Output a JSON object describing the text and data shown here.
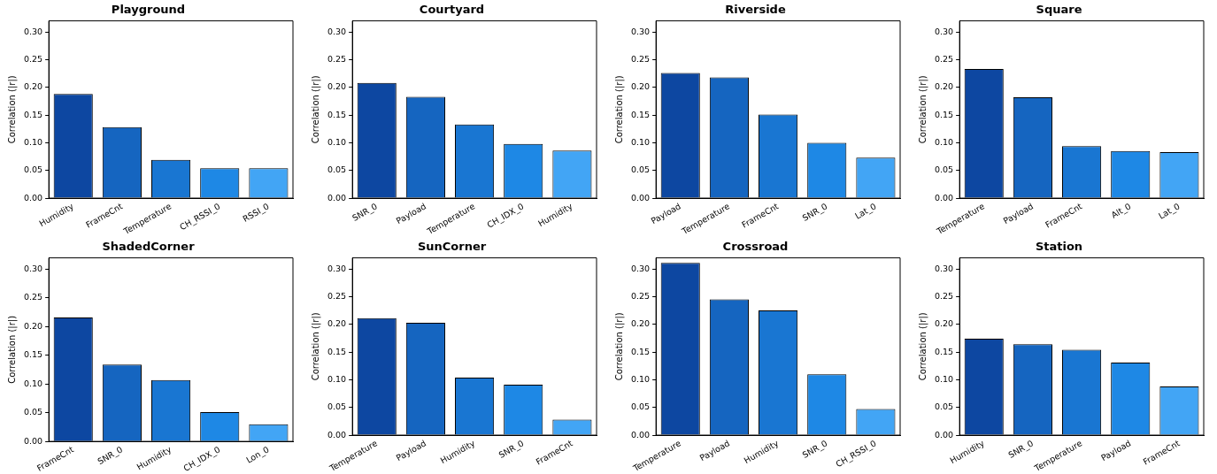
{
  "chart_data": [
    {
      "type": "bar",
      "title": "Playground",
      "ylabel": "Correlation (|r|)",
      "categories": [
        "Humidity",
        "FrameCnt",
        "Temperature",
        "CH_RSSI_0",
        "RSSI_0"
      ],
      "values": [
        0.188,
        0.128,
        0.069,
        0.054,
        0.054
      ],
      "colors": [
        "#0d47a1",
        "#1565c0",
        "#1976d2",
        "#1e88e5",
        "#42a5f5"
      ],
      "ylim": [
        0,
        0.32
      ],
      "yticks": [
        {
          "value": 0,
          "label": "0.00"
        },
        {
          "value": 0.05,
          "label": "0.05"
        },
        {
          "value": 0.1,
          "label": "0.10"
        },
        {
          "value": 0.15,
          "label": "0.15"
        },
        {
          "value": 0.2,
          "label": "0.20"
        },
        {
          "value": 0.25,
          "label": "0.25"
        },
        {
          "value": 0.3,
          "label": "0.30"
        }
      ],
      "grid": false,
      "legend": false
    },
    {
      "type": "bar",
      "title": "Courtyard",
      "ylabel": "Correlation (|r|)",
      "categories": [
        "SNR_0",
        "Payload",
        "Temperature",
        "CH_IDX_0",
        "Humidity"
      ],
      "values": [
        0.208,
        0.183,
        0.133,
        0.098,
        0.086
      ],
      "colors": [
        "#0d47a1",
        "#1565c0",
        "#1976d2",
        "#1e88e5",
        "#42a5f5"
      ],
      "ylim": [
        0,
        0.32
      ],
      "yticks": [
        {
          "value": 0,
          "label": "0.00"
        },
        {
          "value": 0.05,
          "label": "0.05"
        },
        {
          "value": 0.1,
          "label": "0.10"
        },
        {
          "value": 0.15,
          "label": "0.15"
        },
        {
          "value": 0.2,
          "label": "0.20"
        },
        {
          "value": 0.25,
          "label": "0.25"
        },
        {
          "value": 0.3,
          "label": "0.30"
        }
      ],
      "grid": false,
      "legend": false
    },
    {
      "type": "bar",
      "title": "Riverside",
      "ylabel": "Correlation (|r|)",
      "categories": [
        "Payload",
        "Temperature",
        "FrameCnt",
        "SNR_0",
        "Lat_0"
      ],
      "values": [
        0.226,
        0.218,
        0.151,
        0.1,
        0.073
      ],
      "colors": [
        "#0d47a1",
        "#1565c0",
        "#1976d2",
        "#1e88e5",
        "#42a5f5"
      ],
      "ylim": [
        0,
        0.32
      ],
      "yticks": [
        {
          "value": 0,
          "label": "0.00"
        },
        {
          "value": 0.05,
          "label": "0.05"
        },
        {
          "value": 0.1,
          "label": "0.10"
        },
        {
          "value": 0.15,
          "label": "0.15"
        },
        {
          "value": 0.2,
          "label": "0.20"
        },
        {
          "value": 0.25,
          "label": "0.25"
        },
        {
          "value": 0.3,
          "label": "0.30"
        }
      ],
      "grid": false,
      "legend": false
    },
    {
      "type": "bar",
      "title": "Square",
      "ylabel": "Correlation (|r|)",
      "categories": [
        "Temperature",
        "Payload",
        "FrameCnt",
        "Alt_0",
        "Lat_0"
      ],
      "values": [
        0.233,
        0.182,
        0.094,
        0.085,
        0.083
      ],
      "colors": [
        "#0d47a1",
        "#1565c0",
        "#1976d2",
        "#1e88e5",
        "#42a5f5"
      ],
      "ylim": [
        0,
        0.32
      ],
      "yticks": [
        {
          "value": 0,
          "label": "0.00"
        },
        {
          "value": 0.05,
          "label": "0.05"
        },
        {
          "value": 0.1,
          "label": "0.10"
        },
        {
          "value": 0.15,
          "label": "0.15"
        },
        {
          "value": 0.2,
          "label": "0.20"
        },
        {
          "value": 0.25,
          "label": "0.25"
        },
        {
          "value": 0.3,
          "label": "0.30"
        }
      ],
      "grid": false,
      "legend": false
    },
    {
      "type": "bar",
      "title": "ShadedCorner",
      "ylabel": "Correlation (|r|)",
      "categories": [
        "FrameCnt",
        "SNR_0",
        "Humidity",
        "CH_IDX_0",
        "Lon_0"
      ],
      "values": [
        0.216,
        0.134,
        0.107,
        0.051,
        0.03
      ],
      "colors": [
        "#0d47a1",
        "#1565c0",
        "#1976d2",
        "#1e88e5",
        "#42a5f5"
      ],
      "ylim": [
        0,
        0.32
      ],
      "yticks": [
        {
          "value": 0,
          "label": "0.00"
        },
        {
          "value": 0.05,
          "label": "0.05"
        },
        {
          "value": 0.1,
          "label": "0.10"
        },
        {
          "value": 0.15,
          "label": "0.15"
        },
        {
          "value": 0.2,
          "label": "0.20"
        },
        {
          "value": 0.25,
          "label": "0.25"
        },
        {
          "value": 0.3,
          "label": "0.30"
        }
      ],
      "grid": false,
      "legend": false
    },
    {
      "type": "bar",
      "title": "SunCorner",
      "ylabel": "Correlation (|r|)",
      "categories": [
        "Temperature",
        "Payload",
        "Humidity",
        "SNR_0",
        "FrameCnt"
      ],
      "values": [
        0.211,
        0.203,
        0.104,
        0.091,
        0.028
      ],
      "colors": [
        "#0d47a1",
        "#1565c0",
        "#1976d2",
        "#1e88e5",
        "#42a5f5"
      ],
      "ylim": [
        0,
        0.32
      ],
      "yticks": [
        {
          "value": 0,
          "label": "0.00"
        },
        {
          "value": 0.05,
          "label": "0.05"
        },
        {
          "value": 0.1,
          "label": "0.10"
        },
        {
          "value": 0.15,
          "label": "0.15"
        },
        {
          "value": 0.2,
          "label": "0.20"
        },
        {
          "value": 0.25,
          "label": "0.25"
        },
        {
          "value": 0.3,
          "label": "0.30"
        }
      ],
      "grid": false,
      "legend": false
    },
    {
      "type": "bar",
      "title": "Crossroad",
      "ylabel": "Correlation (|r|)",
      "categories": [
        "Temperature",
        "Payload",
        "Humidity",
        "SNR_0",
        "CH_RSSI_0"
      ],
      "values": [
        0.311,
        0.245,
        0.225,
        0.11,
        0.047
      ],
      "colors": [
        "#0d47a1",
        "#1565c0",
        "#1976d2",
        "#1e88e5",
        "#42a5f5"
      ],
      "ylim": [
        0,
        0.32
      ],
      "yticks": [
        {
          "value": 0,
          "label": "0.00"
        },
        {
          "value": 0.05,
          "label": "0.05"
        },
        {
          "value": 0.1,
          "label": "0.10"
        },
        {
          "value": 0.15,
          "label": "0.15"
        },
        {
          "value": 0.2,
          "label": "0.20"
        },
        {
          "value": 0.25,
          "label": "0.25"
        },
        {
          "value": 0.3,
          "label": "0.30"
        }
      ],
      "grid": false,
      "legend": false
    },
    {
      "type": "bar",
      "title": "Station",
      "ylabel": "Correlation (|r|)",
      "categories": [
        "Humidity",
        "SNR_0",
        "Temperature",
        "Payload",
        "FrameCnt"
      ],
      "values": [
        0.174,
        0.164,
        0.154,
        0.131,
        0.088
      ],
      "colors": [
        "#0d47a1",
        "#1565c0",
        "#1976d2",
        "#1e88e5",
        "#42a5f5"
      ],
      "ylim": [
        0,
        0.32
      ],
      "yticks": [
        {
          "value": 0,
          "label": "0.00"
        },
        {
          "value": 0.05,
          "label": "0.05"
        },
        {
          "value": 0.1,
          "label": "0.10"
        },
        {
          "value": 0.15,
          "label": "0.15"
        },
        {
          "value": 0.2,
          "label": "0.20"
        },
        {
          "value": 0.25,
          "label": "0.25"
        },
        {
          "value": 0.3,
          "label": "0.30"
        }
      ],
      "grid": false,
      "legend": false
    }
  ]
}
